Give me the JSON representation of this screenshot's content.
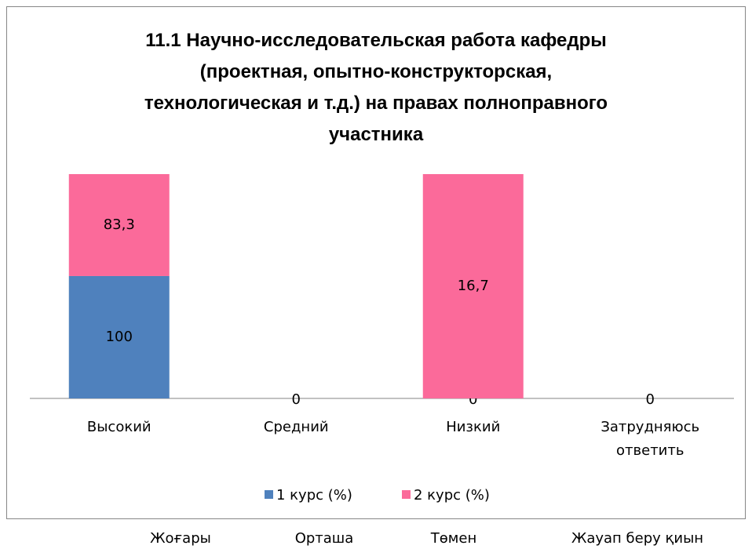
{
  "chart_data": {
    "type": "bar",
    "stacking": "percent",
    "title": "11.1 Научно-исследовательская работа кафедры\n(проектная, опытно-конструкторская,\nтехнологическая и т.д.) на правах полноправного\nучастника",
    "categories": [
      "Высокий",
      "Средний",
      "Низкий",
      "Затрудняюсь ответить"
    ],
    "series": [
      {
        "name": "1 курс (%)",
        "color": "#4f81bd",
        "values": [
          100,
          0,
          0,
          0
        ]
      },
      {
        "name": "2 курс (%)",
        "color": "#fb6a9a",
        "values": [
          83.3,
          null,
          16.7,
          null
        ],
        "value_labels": [
          "83,3",
          null,
          "16,7",
          null
        ]
      }
    ],
    "legend": "bottom"
  },
  "footer_labels": [
    "Жоғары",
    "Орташа",
    "Төмен",
    "Жауап беру қиын"
  ]
}
